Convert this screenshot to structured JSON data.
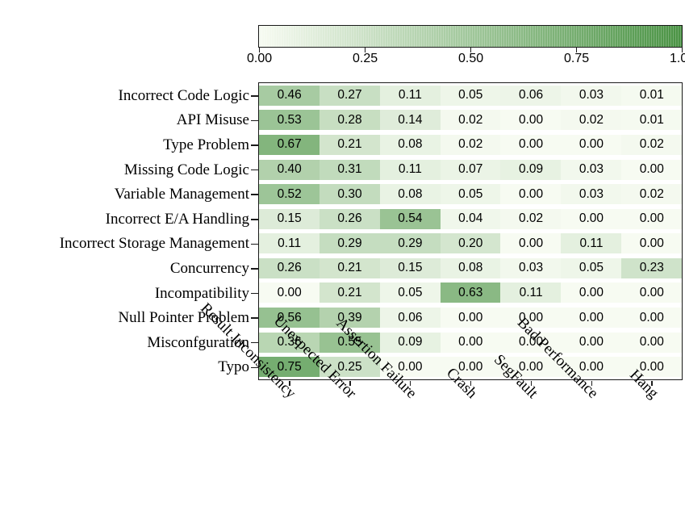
{
  "chart_data": {
    "type": "heatmap",
    "title": "",
    "rows": [
      "Incorrect Code Logic",
      "API Misuse",
      "Type Problem",
      "Missing Code Logic",
      "Variable Management",
      "Incorrect E/A Handling",
      "Incorrect Storage Management",
      "Concurrency",
      "Incompatibility",
      "Null Pointer Problem",
      "Misconfguration",
      "Typo"
    ],
    "columns": [
      "Result Inconsistency",
      "Unexpected Error",
      "Assertion Failure",
      "Crash",
      "SegFault",
      "Bad Performance",
      "Hang"
    ],
    "values": [
      [
        "0.46",
        "0.27",
        "0.11",
        "0.05",
        "0.06",
        "0.03",
        "0.01"
      ],
      [
        "0.53",
        "0.28",
        "0.14",
        "0.02",
        "0.00",
        "0.02",
        "0.01"
      ],
      [
        "0.67",
        "0.21",
        "0.08",
        "0.02",
        "0.00",
        "0.00",
        "0.02"
      ],
      [
        "0.40",
        "0.31",
        "0.11",
        "0.07",
        "0.09",
        "0.03",
        "0.00"
      ],
      [
        "0.52",
        "0.30",
        "0.08",
        "0.05",
        "0.00",
        "0.03",
        "0.02"
      ],
      [
        "0.15",
        "0.26",
        "0.54",
        "0.04",
        "0.02",
        "0.00",
        "0.00"
      ],
      [
        "0.11",
        "0.29",
        "0.29",
        "0.20",
        "0.00",
        "0.11",
        "0.00"
      ],
      [
        "0.26",
        "0.21",
        "0.15",
        "0.08",
        "0.03",
        "0.05",
        "0.23"
      ],
      [
        "0.00",
        "0.21",
        "0.05",
        "0.63",
        "0.11",
        "0.00",
        "0.00"
      ],
      [
        "0.56",
        "0.39",
        "0.06",
        "0.00",
        "0.00",
        "0.00",
        "0.00"
      ],
      [
        "0.36",
        "0.55",
        "0.09",
        "0.00",
        "0.00",
        "0.00",
        "0.00"
      ],
      [
        "0.75",
        "0.25",
        "0.00",
        "0.00",
        "0.00",
        "0.00",
        "0.00"
      ]
    ],
    "colorbar": {
      "orientation": "horizontal",
      "position": "top",
      "range": [
        0,
        1
      ],
      "tick_labels": [
        "0.00",
        "0.25",
        "0.50",
        "0.75",
        "1.00"
      ]
    },
    "colormap_stops": [
      {
        "value": 0,
        "color": "#f7fbf2"
      },
      {
        "value": 1,
        "color": "#4a9344"
      }
    ],
    "style": {
      "border_color": "#1a1a1a",
      "cell_text_color": "#000000",
      "row_gap_color": "#ffffff",
      "background": "#ffffff"
    },
    "layout_hints": {
      "grid": "off",
      "legend": "colorbar-top",
      "xlabel": "",
      "ylabel": ""
    }
  }
}
